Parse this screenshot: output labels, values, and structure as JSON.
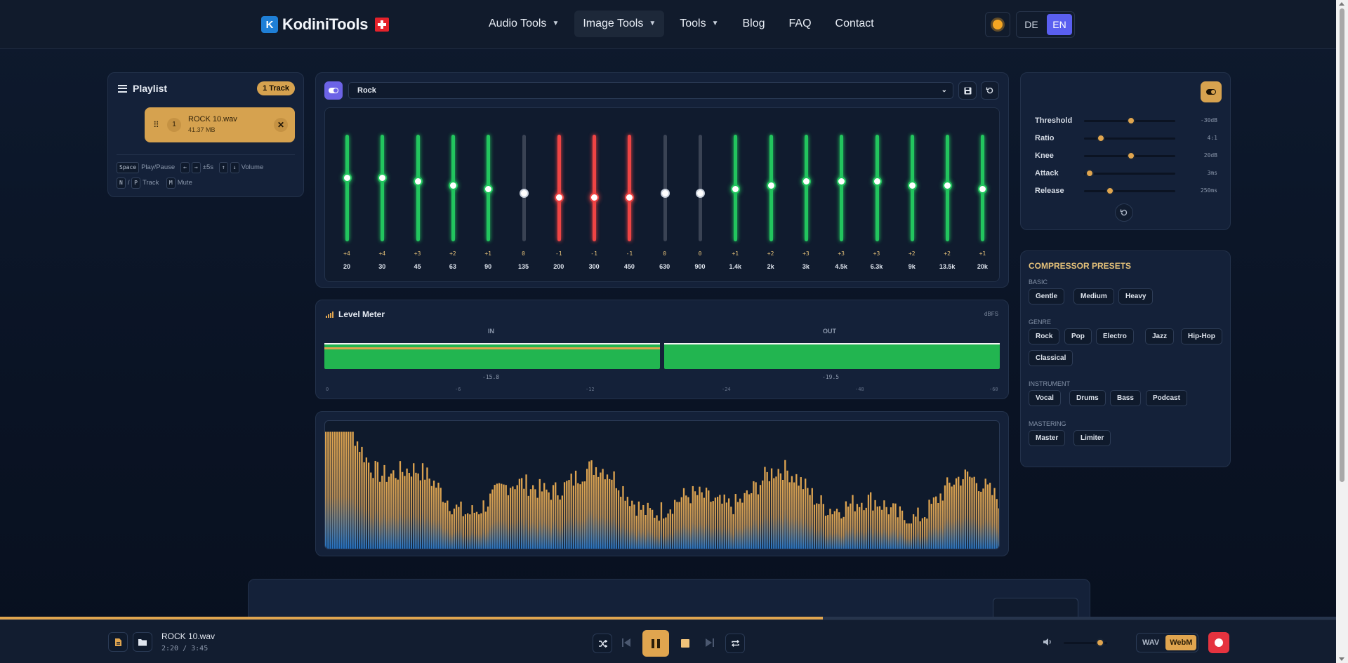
{
  "header": {
    "logo_text": "KodiniTools",
    "logo_letter": "K",
    "nav": [
      {
        "label": "Audio Tools",
        "caret": true,
        "active": false
      },
      {
        "label": "Image Tools",
        "caret": true,
        "active": true
      },
      {
        "label": "Tools",
        "caret": true,
        "active": false
      },
      {
        "label": "Blog",
        "caret": false,
        "active": false
      },
      {
        "label": "FAQ",
        "caret": false,
        "active": false
      },
      {
        "label": "Contact",
        "caret": false,
        "active": false
      }
    ],
    "lang": {
      "de": "DE",
      "en": "EN",
      "selected": "EN"
    }
  },
  "playlist": {
    "title": "Playlist",
    "badge": "1 Track",
    "tracks": [
      {
        "index": "1",
        "name": "ROCK 10.wav",
        "size": "41.37 MB"
      }
    ],
    "shortcuts": {
      "space_key": "Space",
      "space_label": "Play/Pause",
      "left_key": "←",
      "right_key": "→",
      "seek_label": "±5s",
      "up_key": "↑",
      "down_key": "↓",
      "volume_label": "Volume",
      "n_key": "N",
      "slash": "/",
      "p_key": "P",
      "track_label": "Track",
      "m_key": "M",
      "mute_label": "Mute"
    }
  },
  "equalizer": {
    "enabled": true,
    "preset": "Rock",
    "bands": [
      {
        "freq": "20",
        "gain": 4,
        "label": "+4"
      },
      {
        "freq": "30",
        "gain": 4,
        "label": "+4"
      },
      {
        "freq": "45",
        "gain": 3,
        "label": "+3"
      },
      {
        "freq": "63",
        "gain": 2,
        "label": "+2"
      },
      {
        "freq": "90",
        "gain": 1,
        "label": "+1"
      },
      {
        "freq": "135",
        "gain": 0,
        "label": "0"
      },
      {
        "freq": "200",
        "gain": -1,
        "label": "-1"
      },
      {
        "freq": "300",
        "gain": -1,
        "label": "-1"
      },
      {
        "freq": "450",
        "gain": -1,
        "label": "-1"
      },
      {
        "freq": "630",
        "gain": 0,
        "label": "0"
      },
      {
        "freq": "900",
        "gain": 0,
        "label": "0"
      },
      {
        "freq": "1.4k",
        "gain": 1,
        "label": "+1"
      },
      {
        "freq": "2k",
        "gain": 2,
        "label": "+2"
      },
      {
        "freq": "3k",
        "gain": 3,
        "label": "+3"
      },
      {
        "freq": "4.5k",
        "gain": 3,
        "label": "+3"
      },
      {
        "freq": "6.3k",
        "gain": 3,
        "label": "+3"
      },
      {
        "freq": "9k",
        "gain": 2,
        "label": "+2"
      },
      {
        "freq": "13.5k",
        "gain": 2,
        "label": "+2"
      },
      {
        "freq": "20k",
        "gain": 1,
        "label": "+1"
      }
    ],
    "colors": {
      "positive": "#22c55e",
      "negative": "#ef4444",
      "neutral": "#3a4354"
    }
  },
  "level_meter": {
    "title": "Level Meter",
    "unit": "dBFS",
    "in_label": "IN",
    "out_label": "OUT",
    "in_value": "-15.8",
    "out_value": "-19.5",
    "scale": [
      "0",
      "-6",
      "-12",
      "-24",
      "-48",
      "-60"
    ]
  },
  "compressor": {
    "enabled": true,
    "params": [
      {
        "name": "Threshold",
        "value": "-30dB",
        "position": 0.5
      },
      {
        "name": "Ratio",
        "value": "4:1",
        "position": 0.15
      },
      {
        "name": "Knee",
        "value": "20dB",
        "position": 0.5
      },
      {
        "name": "Attack",
        "value": "3ms",
        "position": 0.02
      },
      {
        "name": "Release",
        "value": "250ms",
        "position": 0.25
      }
    ]
  },
  "presets": {
    "title": "COMPRESSOR PRESETS",
    "groups": [
      {
        "name": "BASIC",
        "items": [
          "Gentle",
          "Medium",
          "Heavy"
        ]
      },
      {
        "name": "GENRE",
        "items": [
          "Rock",
          "Pop",
          "Electro",
          "Jazz",
          "Hip-Hop",
          "Classical"
        ]
      },
      {
        "name": "INSTRUMENT",
        "items": [
          "Vocal",
          "Drums",
          "Bass",
          "Podcast"
        ]
      },
      {
        "name": "MASTERING",
        "items": [
          "Master",
          "Limiter"
        ]
      }
    ]
  },
  "player": {
    "track_name": "ROCK 10.wav",
    "time": "2:20 / 3:45",
    "progress": 0.616,
    "volume": 0.8,
    "formats": [
      "WAV",
      "WebM"
    ],
    "selected_format": "WebM",
    "accent": "#e0a54f",
    "record_color": "#e5333f"
  }
}
